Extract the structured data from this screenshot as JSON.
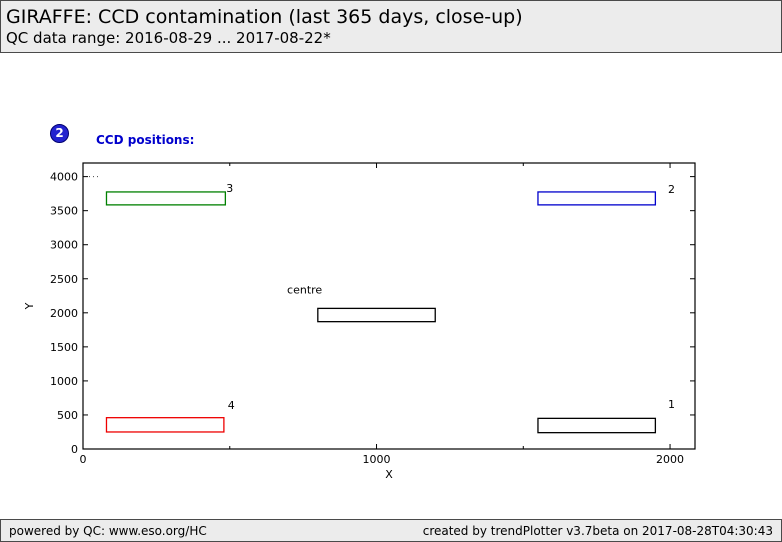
{
  "header": {
    "title": "GIRAFFE: CCD contamination (last 365 days, close-up)",
    "subtitle": "QC data range: 2016-08-29 ... 2017-08-22*"
  },
  "section": {
    "badge": "2",
    "label": "CCD positions:"
  },
  "footer": {
    "left": "powered by QC: www.eso.org/HC",
    "right": "created by trendPlotter v3.7beta on 2017-08-28T04:30:43"
  },
  "colors": {
    "band_bg": "#ececec",
    "badge_blue": "#2323cf",
    "section_label_blue": "#0000cc",
    "box_green": "#008000",
    "box_blue": "#0000cc",
    "box_red": "#ee0000",
    "box_black": "#000000"
  },
  "chart_data": {
    "type": "rectangles",
    "title": "CCD positions:",
    "xlabel": "X",
    "ylabel": "Y",
    "xlim": [
      0,
      2085
    ],
    "ylim": [
      0,
      4200
    ],
    "grid": false,
    "x_major_ticks": [
      0,
      1000,
      2000
    ],
    "x_minor_ticks": [
      500,
      1500
    ],
    "y_major_ticks": [
      0,
      500,
      1000,
      1500,
      2000,
      2500,
      3000,
      3500,
      4000
    ],
    "boxes": [
      {
        "label": "3",
        "color": "#008000",
        "x0": 80,
        "x1": 485,
        "y0": 3585,
        "y1": 3775,
        "label_x": 500,
        "label_y": 3830
      },
      {
        "label": "2",
        "color": "#0000cc",
        "x0": 1550,
        "x1": 1950,
        "y0": 3585,
        "y1": 3775,
        "label_x": 2005,
        "label_y": 3820
      },
      {
        "label": "centre",
        "color": "#000000",
        "x0": 800,
        "x1": 1200,
        "y0": 1870,
        "y1": 2065,
        "label_x": 755,
        "label_y": 2340
      },
      {
        "label": "4",
        "color": "#ee0000",
        "x0": 80,
        "x1": 480,
        "y0": 250,
        "y1": 460,
        "label_x": 505,
        "label_y": 645
      },
      {
        "label": "1",
        "color": "#000000",
        "x0": 1550,
        "x1": 1950,
        "y0": 240,
        "y1": 450,
        "label_x": 2005,
        "label_y": 660
      }
    ]
  }
}
